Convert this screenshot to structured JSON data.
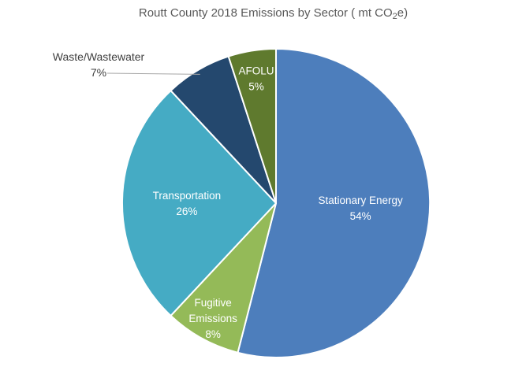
{
  "title": {
    "prefix": "Routt County 2018 Emissions by Sector ( mt CO",
    "sub": "2",
    "suffix": "e)"
  },
  "chart_data": {
    "type": "pie",
    "title": "Routt County 2018 Emissions by Sector ( mt CO2e)",
    "unit": "mt CO2e",
    "start_angle_deg": 0,
    "direction": "clockwise",
    "legend": "none",
    "background": "#FFFFFF",
    "categories": [
      "Stationary Energy",
      "Fugitive Emissions",
      "Transportation",
      "Waste/Wastewater",
      "AFOLU"
    ],
    "values": [
      54,
      8,
      26,
      7,
      5
    ],
    "slices": [
      {
        "name": "Stationary Energy",
        "pct": 54,
        "color": "#4D7EBC",
        "label_lines": [
          "Stationary Energy",
          "54%"
        ],
        "label_placement": "inside"
      },
      {
        "name": "Fugitive Emissions",
        "pct": 8,
        "color": "#94BA58",
        "label_lines": [
          "Fugitive",
          "Emissions",
          "8%"
        ],
        "label_placement": "inside"
      },
      {
        "name": "Transportation",
        "pct": 26,
        "color": "#45ABC4",
        "label_lines": [
          "Transportation",
          "26%"
        ],
        "label_placement": "inside"
      },
      {
        "name": "Waste/Wastewater",
        "pct": 7,
        "color": "#24486E",
        "label_lines": [
          "Waste/Wastewater",
          "7%"
        ],
        "label_placement": "outside"
      },
      {
        "name": "AFOLU",
        "pct": 5,
        "color": "#5F7A2E",
        "label_lines": [
          "AFOLU",
          "5%"
        ],
        "label_placement": "inside"
      }
    ],
    "label_color_inside": "#FFFFFF",
    "label_color_outside": "#404040",
    "leader_line_color": "#A6A6A6"
  }
}
